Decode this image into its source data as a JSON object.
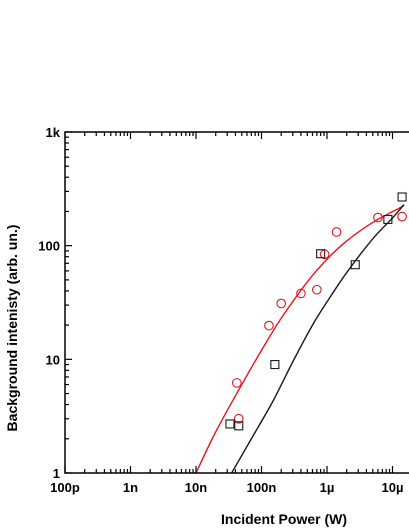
{
  "chart_data": {
    "type": "scatter",
    "xlabel": "Incident Power (W)",
    "ylabel": "Background intenisty (arb. un.)",
    "x_scale": "log",
    "y_scale": "log",
    "xlim": [
      1e-10,
      1.5e-05
    ],
    "ylim": [
      1,
      1000
    ],
    "x_ticks": [
      {
        "value": 1e-10,
        "label": "100p"
      },
      {
        "value": 1e-09,
        "label": "1n"
      },
      {
        "value": 1e-08,
        "label": "10n"
      },
      {
        "value": 1e-07,
        "label": "100n"
      },
      {
        "value": 1e-06,
        "label": "1µ"
      },
      {
        "value": 1e-05,
        "label": "10µ"
      }
    ],
    "y_ticks": [
      {
        "value": 1,
        "label": "1"
      },
      {
        "value": 10,
        "label": "10"
      },
      {
        "value": 100,
        "label": "100"
      },
      {
        "value": 1000,
        "label": "1k"
      }
    ],
    "series": [
      {
        "marker": "circle",
        "color": "#e8141b",
        "points": [
          {
            "x": 4.2e-08,
            "y": 6.2
          },
          {
            "x": 4.5e-08,
            "y": 3.0
          },
          {
            "x": 1.3e-07,
            "y": 19.8
          },
          {
            "x": 2e-07,
            "y": 31
          },
          {
            "x": 4e-07,
            "y": 38
          },
          {
            "x": 7e-07,
            "y": 41
          },
          {
            "x": 9.2e-07,
            "y": 84
          },
          {
            "x": 1.4e-06,
            "y": 132
          },
          {
            "x": 6e-06,
            "y": 177
          },
          {
            "x": 1.4e-05,
            "y": 180
          }
        ]
      },
      {
        "marker": "square",
        "color": "#1a1a1a",
        "points": [
          {
            "x": 3.3e-08,
            "y": 2.7
          },
          {
            "x": 4.5e-08,
            "y": 2.6
          },
          {
            "x": 1.6e-07,
            "y": 9.0
          },
          {
            "x": 8e-07,
            "y": 85
          },
          {
            "x": 2.7e-06,
            "y": 68
          },
          {
            "x": 8.5e-06,
            "y": 170
          },
          {
            "x": 1.4e-05,
            "y": 268
          }
        ]
      }
    ],
    "fits": [
      {
        "color": "#e8141b",
        "points": [
          {
            "x": 1e-08,
            "y": 1.0
          },
          {
            "x": 2e-08,
            "y": 2.3
          },
          {
            "x": 5e-08,
            "y": 6.0
          },
          {
            "x": 1e-07,
            "y": 12
          },
          {
            "x": 2e-07,
            "y": 23
          },
          {
            "x": 5e-07,
            "y": 48
          },
          {
            "x": 1e-06,
            "y": 76
          },
          {
            "x": 2e-06,
            "y": 110
          },
          {
            "x": 5e-06,
            "y": 160
          },
          {
            "x": 1.5e-05,
            "y": 225
          }
        ]
      },
      {
        "color": "#1a1a1a",
        "points": [
          {
            "x": 3.5e-08,
            "y": 1.0
          },
          {
            "x": 7e-08,
            "y": 2.0
          },
          {
            "x": 1.5e-07,
            "y": 4.3
          },
          {
            "x": 3e-07,
            "y": 9.5
          },
          {
            "x": 6e-07,
            "y": 20
          },
          {
            "x": 1e-06,
            "y": 32
          },
          {
            "x": 2e-06,
            "y": 58
          },
          {
            "x": 5e-06,
            "y": 115
          },
          {
            "x": 1e-05,
            "y": 175
          },
          {
            "x": 1.5e-05,
            "y": 230
          }
        ]
      }
    ]
  }
}
